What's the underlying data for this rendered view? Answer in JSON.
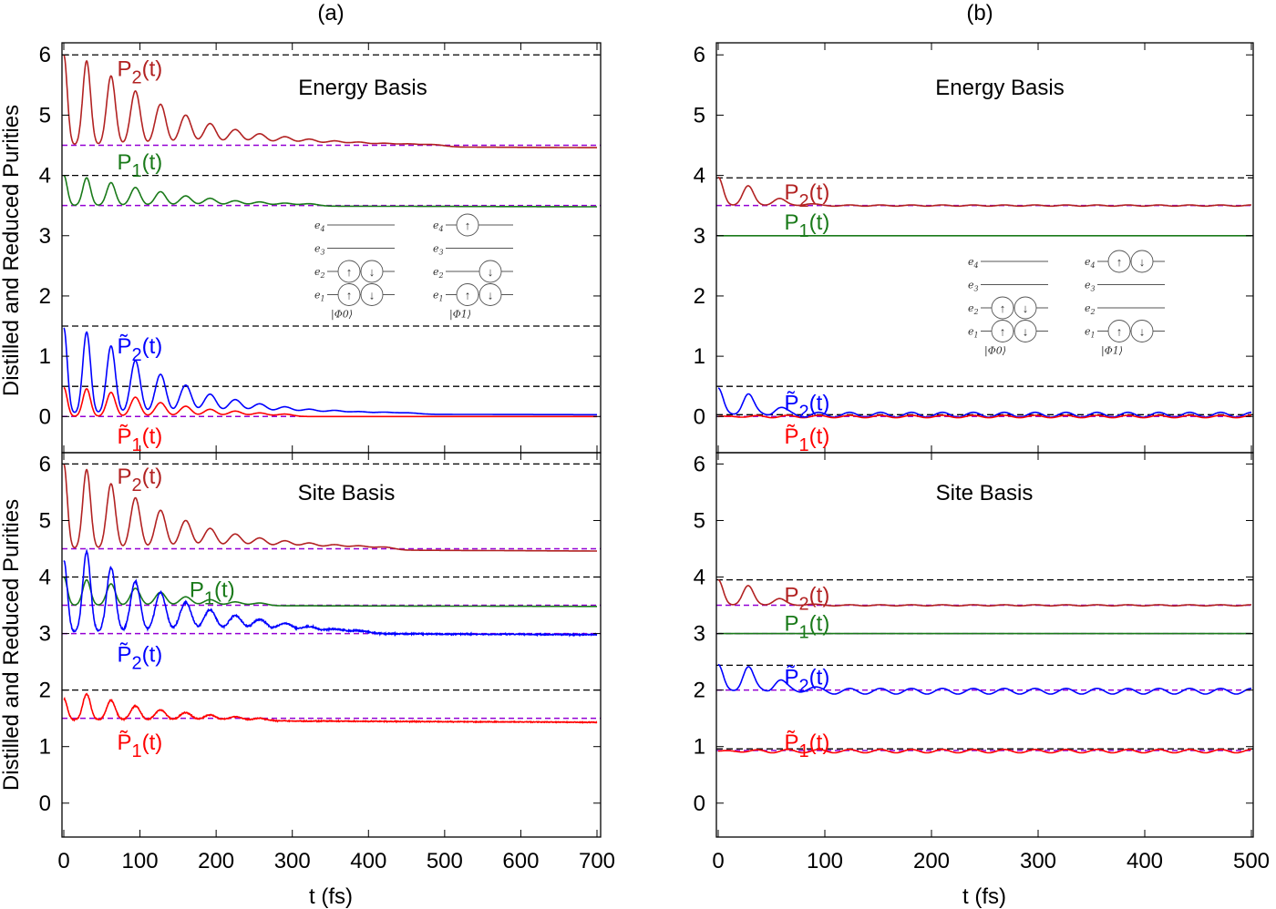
{
  "figure": {
    "panel_titles": [
      "(a)",
      "(b)"
    ],
    "ylabel": "Distilled and Reduced Purities",
    "xlabel": "t (fs)",
    "basis_labels": {
      "energy": "Energy Basis",
      "site": "Site Basis"
    },
    "colors": {
      "P2": "#b22222",
      "P1": "#1a7a1a",
      "P2t": "#0000ff",
      "P1t": "#ff0000",
      "ref_black": "#000000",
      "ref_purple": "#9400d3"
    },
    "series_labels": {
      "P2": "P2(t)",
      "P1": "P1(t)",
      "P2t": "P̃2(t)",
      "P1t": "P̃1(t)"
    },
    "inset": {
      "levels": [
        "e4",
        "e3",
        "e2",
        "e1"
      ],
      "states": [
        "|Φ0⟩",
        "|Φ1⟩"
      ],
      "spin_up": "↑",
      "spin_down": "↓"
    }
  },
  "chart_data": [
    {
      "type": "line",
      "panel": "(a) Energy Basis",
      "xlim": [
        0,
        700
      ],
      "ylim": [
        -0.6,
        6.2
      ],
      "xticks": [
        0,
        100,
        200,
        300,
        400,
        500,
        600,
        700
      ],
      "yticks": [
        0,
        1,
        2,
        3,
        4,
        5,
        6
      ],
      "ref_black": [
        6,
        4,
        1.5,
        0.5
      ],
      "ref_purple": [
        4.5,
        3.5,
        0
      ],
      "series": [
        {
          "key": "P2",
          "baseline": [
            4.5,
            4.46
          ],
          "peaks": [
            [
              0,
              6.0
            ],
            [
              30,
              5.9
            ],
            [
              62,
              5.65
            ],
            [
              94,
              5.4
            ],
            [
              127,
              5.18
            ],
            [
              160,
              5.0
            ],
            [
              192,
              4.86
            ],
            [
              225,
              4.76
            ],
            [
              257,
              4.69
            ],
            [
              290,
              4.64
            ],
            [
              322,
              4.6
            ],
            [
              355,
              4.57
            ],
            [
              387,
              4.55
            ],
            [
              420,
              4.53
            ],
            [
              452,
              4.52
            ],
            [
              485,
              4.51
            ]
          ]
        },
        {
          "key": "P1",
          "baseline": [
            3.5,
            3.48
          ],
          "peaks": [
            [
              0,
              4.0
            ],
            [
              30,
              3.96
            ],
            [
              62,
              3.88
            ],
            [
              94,
              3.8
            ],
            [
              127,
              3.73
            ],
            [
              160,
              3.66
            ],
            [
              192,
              3.62
            ],
            [
              225,
              3.58
            ],
            [
              257,
              3.56
            ],
            [
              290,
              3.54
            ],
            [
              322,
              3.53
            ]
          ]
        },
        {
          "key": "P2t",
          "baseline": [
            0.05,
            0.03
          ],
          "peaks": [
            [
              0,
              1.47
            ],
            [
              30,
              1.4
            ],
            [
              62,
              1.17
            ],
            [
              94,
              0.93
            ],
            [
              127,
              0.7
            ],
            [
              160,
              0.52
            ],
            [
              192,
              0.37
            ],
            [
              225,
              0.28
            ],
            [
              257,
              0.21
            ],
            [
              290,
              0.16
            ],
            [
              322,
              0.12
            ],
            [
              355,
              0.1
            ],
            [
              387,
              0.08
            ],
            [
              420,
              0.07
            ],
            [
              452,
              0.06
            ]
          ]
        },
        {
          "key": "P1t",
          "baseline": [
            0.0,
            0.0
          ],
          "peaks": [
            [
              0,
              0.48
            ],
            [
              30,
              0.46
            ],
            [
              62,
              0.4
            ],
            [
              94,
              0.32
            ],
            [
              127,
              0.23
            ],
            [
              160,
              0.17
            ],
            [
              192,
              0.12
            ],
            [
              225,
              0.09
            ],
            [
              257,
              0.06
            ],
            [
              290,
              0.04
            ]
          ]
        }
      ]
    },
    {
      "type": "line",
      "panel": "(a) Site Basis",
      "xlim": [
        0,
        700
      ],
      "ylim": [
        -0.6,
        6.2
      ],
      "xticks": [
        0,
        100,
        200,
        300,
        400,
        500,
        600,
        700
      ],
      "yticks": [
        0,
        1,
        2,
        3,
        4,
        5,
        6
      ],
      "ref_black": [
        6,
        4,
        2
      ],
      "ref_purple": [
        4.5,
        3.5,
        3.0,
        1.5
      ],
      "series": [
        {
          "key": "P2",
          "baseline": [
            4.5,
            4.46
          ],
          "peaks": [
            [
              0,
              6.0
            ],
            [
              30,
              5.9
            ],
            [
              62,
              5.65
            ],
            [
              94,
              5.4
            ],
            [
              127,
              5.18
            ],
            [
              160,
              5.0
            ],
            [
              192,
              4.86
            ],
            [
              225,
              4.76
            ],
            [
              257,
              4.69
            ],
            [
              290,
              4.64
            ],
            [
              322,
              4.6
            ],
            [
              355,
              4.57
            ],
            [
              387,
              4.55
            ],
            [
              420,
              4.53
            ]
          ]
        },
        {
          "key": "P1",
          "baseline": [
            3.5,
            3.48
          ],
          "peaks": [
            [
              0,
              4.0
            ],
            [
              30,
              3.95
            ],
            [
              62,
              3.88
            ],
            [
              94,
              3.8
            ],
            [
              127,
              3.73
            ],
            [
              160,
              3.65
            ],
            [
              192,
              3.6
            ],
            [
              225,
              3.56
            ],
            [
              257,
              3.54
            ]
          ]
        },
        {
          "key": "P2t",
          "baseline": [
            3.02,
            2.98
          ],
          "noise": 0.03,
          "peaks": [
            [
              0,
              4.3
            ],
            [
              30,
              4.45
            ],
            [
              62,
              4.17
            ],
            [
              94,
              3.92
            ],
            [
              127,
              3.73
            ],
            [
              160,
              3.55
            ],
            [
              192,
              3.42
            ],
            [
              225,
              3.32
            ],
            [
              257,
              3.25
            ],
            [
              290,
              3.18
            ],
            [
              322,
              3.12
            ],
            [
              355,
              3.08
            ],
            [
              387,
              3.05
            ]
          ]
        },
        {
          "key": "P1t",
          "baseline": [
            1.47,
            1.43
          ],
          "noise": 0.02,
          "peaks": [
            [
              0,
              1.85
            ],
            [
              30,
              1.93
            ],
            [
              62,
              1.82
            ],
            [
              94,
              1.72
            ],
            [
              127,
              1.65
            ],
            [
              160,
              1.6
            ],
            [
              192,
              1.56
            ],
            [
              225,
              1.53
            ],
            [
              257,
              1.5
            ]
          ]
        }
      ]
    },
    {
      "type": "line",
      "panel": "(b) Energy Basis",
      "xlim": [
        0,
        500
      ],
      "ylim": [
        -0.6,
        6.2
      ],
      "xticks": [
        0,
        100,
        200,
        300,
        400,
        500
      ],
      "yticks": [
        0,
        1,
        2,
        3,
        4,
        5,
        6
      ],
      "ref_black": [
        3.96,
        3.0,
        0.5,
        0.03
      ],
      "ref_purple": [
        3.5,
        3.0,
        0
      ],
      "series": [
        {
          "key": "P2",
          "baseline": [
            3.5,
            3.5
          ],
          "osc": [
            0.01,
            29
          ],
          "peaks": [
            [
              0,
              3.97
            ],
            [
              28,
              3.83
            ],
            [
              57,
              3.62
            ],
            [
              85,
              3.53
            ]
          ]
        },
        {
          "key": "P1",
          "baseline": [
            3.0,
            3.0
          ],
          "peaks": []
        },
        {
          "key": "P2t",
          "baseline": [
            0.03,
            0.03
          ],
          "osc": [
            0.04,
            29
          ],
          "peaks": [
            [
              0,
              0.47
            ],
            [
              28,
              0.38
            ],
            [
              57,
              0.15
            ]
          ]
        },
        {
          "key": "P1t",
          "baseline": [
            0.0,
            0.0
          ],
          "osc": [
            0.02,
            29
          ],
          "peaks": []
        }
      ]
    },
    {
      "type": "line",
      "panel": "(b) Site Basis",
      "xlim": [
        0,
        500
      ],
      "ylim": [
        -0.6,
        6.2
      ],
      "xticks": [
        0,
        100,
        200,
        300,
        400,
        500
      ],
      "yticks": [
        0,
        1,
        2,
        3,
        4,
        5,
        6
      ],
      "ref_black": [
        3.95,
        3.0,
        2.44,
        0.96
      ],
      "ref_purple": [
        3.5,
        3.0,
        2.0,
        0.93
      ],
      "series": [
        {
          "key": "P2",
          "baseline": [
            3.5,
            3.5
          ],
          "osc": [
            0.01,
            29
          ],
          "peaks": [
            [
              0,
              3.95
            ],
            [
              28,
              3.85
            ],
            [
              57,
              3.62
            ],
            [
              85,
              3.52
            ]
          ]
        },
        {
          "key": "P1",
          "baseline": [
            3.0,
            3.0
          ],
          "peaks": []
        },
        {
          "key": "P2t",
          "baseline": [
            1.98,
            1.98
          ],
          "osc": [
            0.05,
            29
          ],
          "peaks": [
            [
              0,
              2.45
            ],
            [
              28,
              2.42
            ],
            [
              57,
              2.18
            ],
            [
              85,
              2.04
            ]
          ]
        },
        {
          "key": "P1t",
          "baseline": [
            0.92,
            0.92
          ],
          "osc": [
            0.03,
            29
          ],
          "peaks": []
        }
      ]
    }
  ]
}
